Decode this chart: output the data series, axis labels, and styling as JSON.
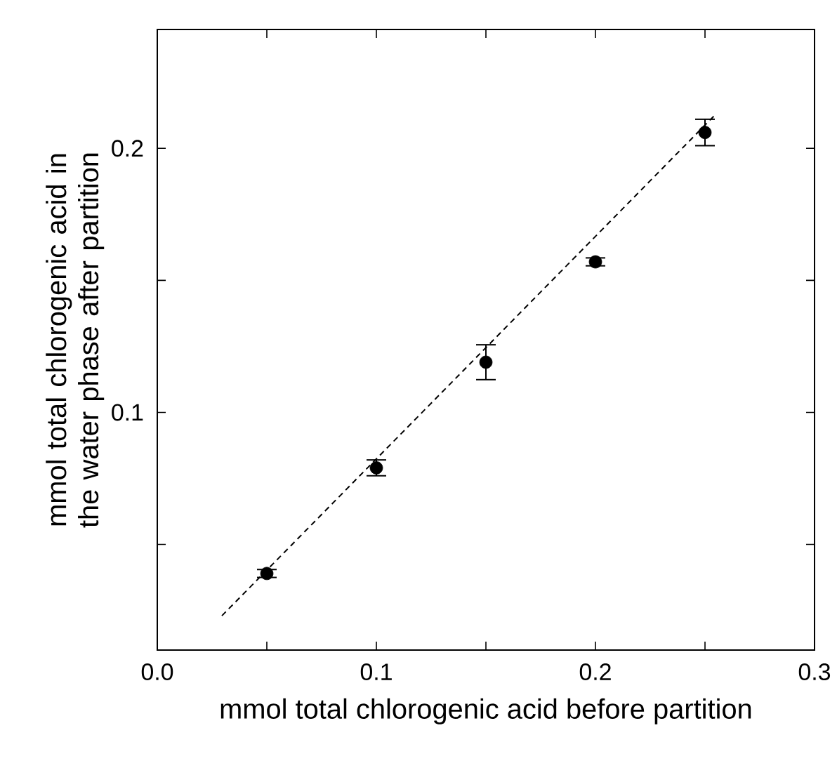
{
  "chart_data": {
    "type": "scatter",
    "xlabel": "mmol total chlorogenic acid before partition",
    "ylabel": "mmol total chlorogenic acid in the water phase after partition",
    "xlim": [
      0,
      0.3
    ],
    "ylim": [
      0.01,
      0.245
    ],
    "xticks": [
      {
        "value": 0,
        "label": "0.0"
      },
      {
        "value": 0.05,
        "label": null
      },
      0.1,
      {
        "value": 0.15,
        "label": null
      },
      0.2,
      {
        "value": 0.25,
        "label": null
      },
      0.3
    ],
    "yticks": [
      {
        "value": 0.05,
        "label": null
      },
      0.1,
      {
        "value": 0.15,
        "label": null
      },
      0.2
    ],
    "series": [
      {
        "color": "#000000",
        "marker": "circle",
        "x": [
          0.05,
          0.1,
          0.15,
          0.2,
          0.25
        ],
        "values": [
          0.039,
          0.079,
          0.119,
          0.157,
          0.206
        ],
        "errors": [
          0.0015,
          0.003,
          0.0066,
          0.0015,
          0.005
        ]
      },
      {
        "type": "line",
        "color": "#000000",
        "marker": "none",
        "line_style": "dashed",
        "x": [
          0.0295,
          0.255
        ],
        "values": [
          0.023,
          0.213
        ]
      }
    ]
  }
}
